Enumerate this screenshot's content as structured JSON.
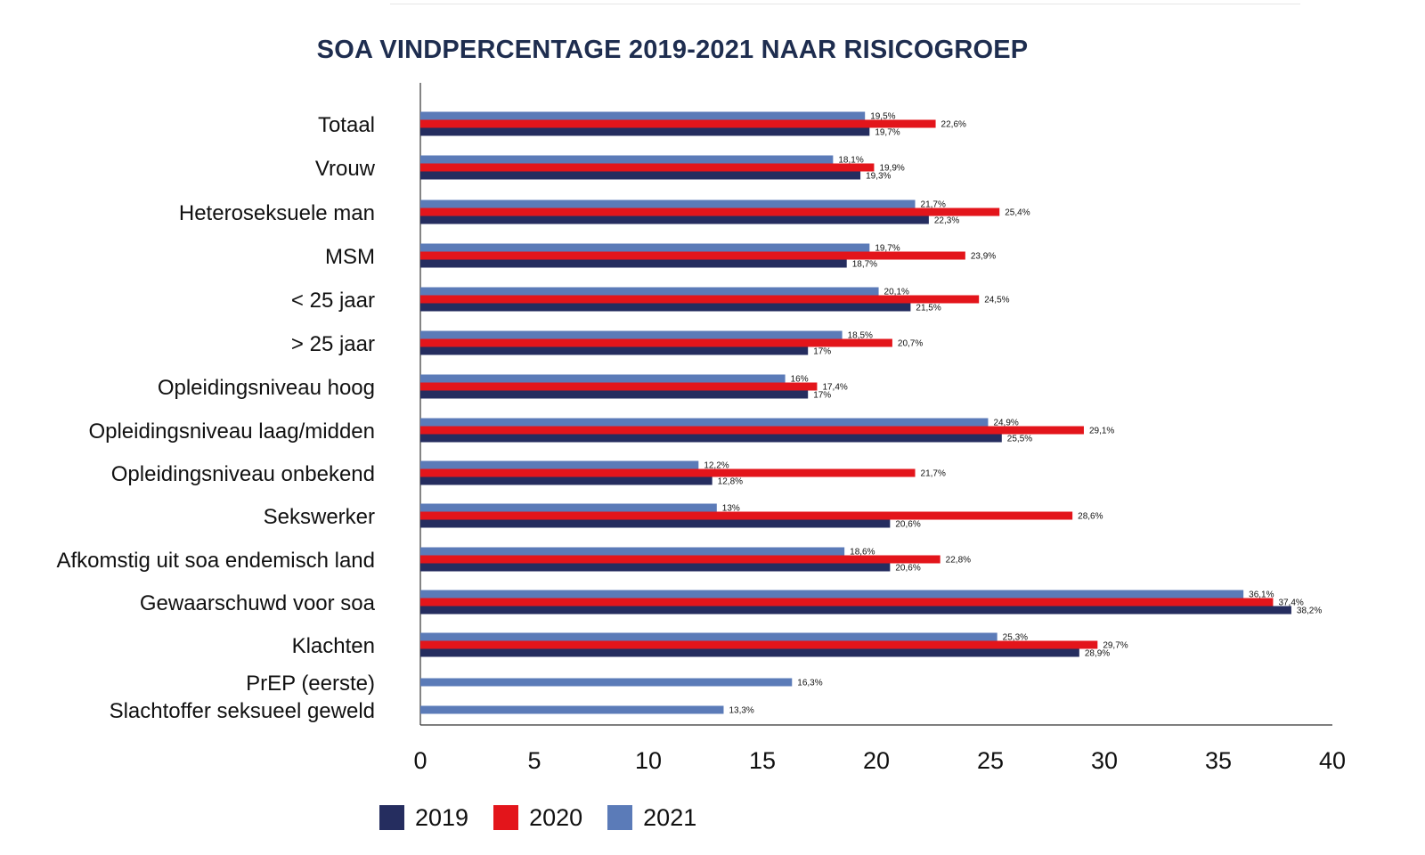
{
  "chart_data": {
    "type": "bar",
    "orientation": "horizontal",
    "title": "SOA VINDPERCENTAGE 2019-2021 NAAR RISICOGROEP",
    "categories": [
      "Totaal",
      "Vrouw",
      "Heteroseksuele man",
      "MSM",
      "< 25 jaar",
      "> 25 jaar",
      "Opleidingsniveau hoog",
      "Opleidingsniveau laag/midden",
      "Opleidingsniveau onbekend",
      "Sekswerker",
      "Afkomstig uit soa endemisch land",
      "Gewaarschuwd voor soa",
      "Klachten",
      "PrEP (eerste)",
      "Slachtoffer seksueel geweld"
    ],
    "series": [
      {
        "name": "2019",
        "color": "#252d5f",
        "values": [
          19.7,
          19.3,
          22.3,
          18.7,
          21.5,
          17,
          17,
          25.5,
          12.8,
          20.6,
          20.6,
          38.2,
          28.9,
          null,
          null
        ],
        "labels": [
          "19,7%",
          "19,3%",
          "22,3%",
          "18,7%",
          "21,5%",
          "17%",
          "17%",
          "25,5%",
          "12,8%",
          "20,6%",
          "20,6%",
          "38,2%",
          "28,9%",
          null,
          null
        ]
      },
      {
        "name": "2020",
        "color": "#e3151b",
        "values": [
          22.6,
          19.9,
          25.4,
          23.9,
          24.5,
          20.7,
          17.4,
          29.1,
          21.7,
          28.6,
          22.8,
          37.4,
          29.7,
          null,
          null
        ],
        "labels": [
          "22,6%",
          "19,9%",
          "25,4%",
          "23,9%",
          "24,5%",
          "20,7%",
          "17,4%",
          "29,1%",
          "21,7%",
          "28,6%",
          "22,8%",
          "37,4%",
          "29,7%",
          null,
          null
        ]
      },
      {
        "name": "2021",
        "color": "#5b7bb8",
        "values": [
          19.5,
          18.1,
          21.7,
          19.7,
          20.1,
          18.5,
          16,
          24.9,
          12.2,
          13,
          18.6,
          36.1,
          25.3,
          16.3,
          13.3
        ],
        "labels": [
          "19,5%",
          "18,1%",
          "21,7%",
          "19,7%",
          "20,1%",
          "18,5%",
          "16%",
          "24,9%",
          "12,2%",
          "13%",
          "18,6%",
          "36,1%",
          "25,3%",
          "16,3%",
          "13,3%"
        ]
      }
    ],
    "xlim": [
      0,
      40
    ],
    "xticks": [
      "0",
      "5",
      "10",
      "15",
      "20",
      "25",
      "30",
      "35",
      "40"
    ],
    "xlabel": "",
    "ylabel": "",
    "grid": false,
    "legend_position": "bottom-left"
  }
}
